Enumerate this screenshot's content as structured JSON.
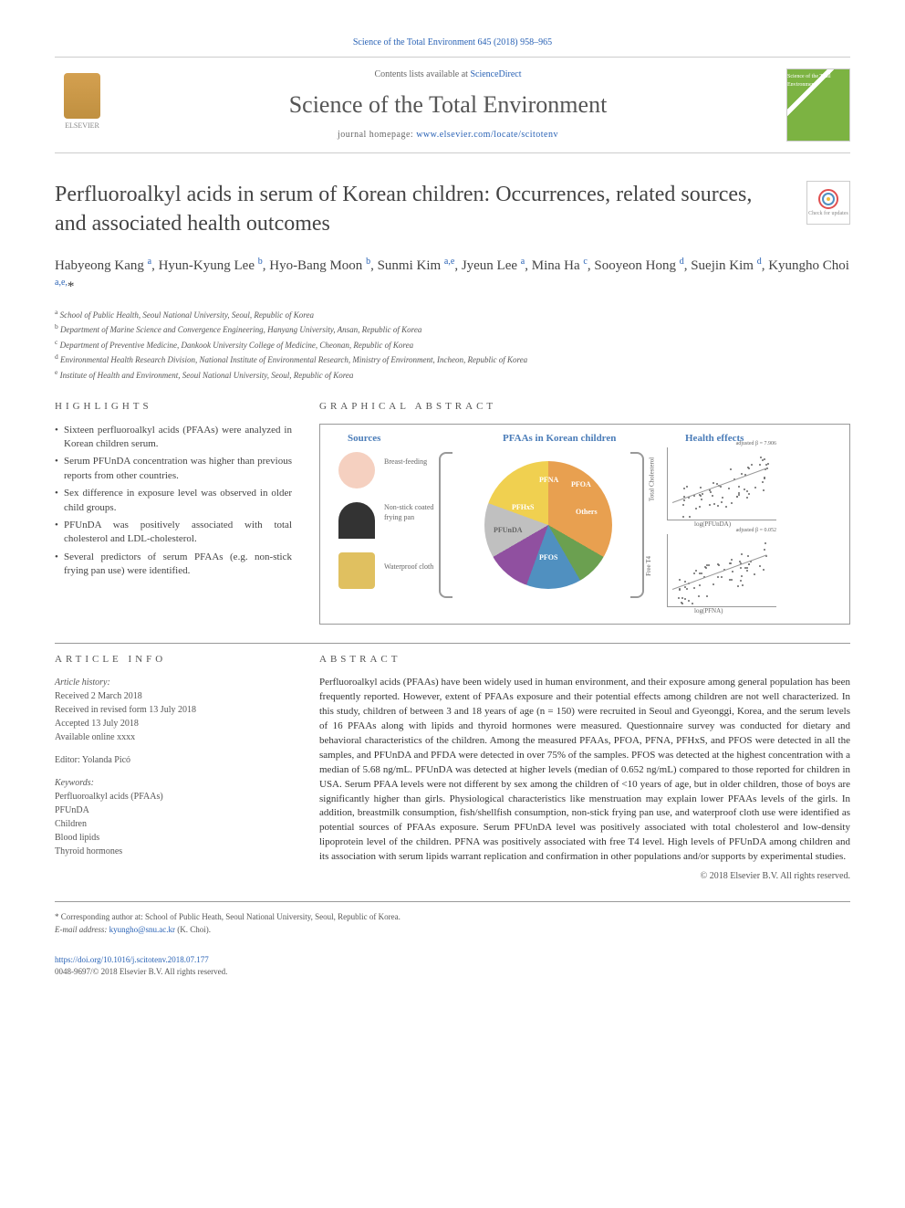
{
  "journal_ref": "Science of the Total Environment 645 (2018) 958–965",
  "contents_line_prefix": "Contents lists available at ",
  "contents_line_link": "ScienceDirect",
  "journal_title": "Science of the Total Environment",
  "journal_homepage_prefix": "journal homepage: ",
  "journal_homepage_link": "www.elsevier.com/locate/scitotenv",
  "publisher": "ELSEVIER",
  "journal_cover_text": "Science of the Total Environment",
  "check_badge_text": "Check for updates",
  "article_title": "Perfluoroalkyl acids in serum of Korean children: Occurrences, related sources, and associated health outcomes",
  "authors_html": "Habyeong Kang <sup>a</sup>, Hyun-Kyung Lee <sup>b</sup>, Hyo-Bang Moon <sup>b</sup>, Sunmi Kim <sup>a,e</sup>, Jyeun Lee <sup>a</sup>, Mina Ha <sup>c</sup>, Sooyeon Hong <sup>d</sup>, Suejin Kim <sup>d</sup>, Kyungho Choi <sup>a,e,</sup><span class='star'>*</span>",
  "affiliations": [
    {
      "sup": "a",
      "text": "School of Public Health, Seoul National University, Seoul, Republic of Korea"
    },
    {
      "sup": "b",
      "text": "Department of Marine Science and Convergence Engineering, Hanyang University, Ansan, Republic of Korea"
    },
    {
      "sup": "c",
      "text": "Department of Preventive Medicine, Dankook University College of Medicine, Cheonan, Republic of Korea"
    },
    {
      "sup": "d",
      "text": "Environmental Health Research Division, National Institute of Environmental Research, Ministry of Environment, Incheon, Republic of Korea"
    },
    {
      "sup": "e",
      "text": "Institute of Health and Environment, Seoul National University, Seoul, Republic of Korea"
    }
  ],
  "highlights_heading": "HIGHLIGHTS",
  "highlights": [
    "Sixteen perfluoroalkyl acids (PFAAs) were analyzed in Korean children serum.",
    "Serum PFUnDA concentration was higher than previous reports from other countries.",
    "Sex difference in exposure level was observed in older child groups.",
    "PFUnDA was positively associated with total cholesterol and LDL-cholesterol.",
    "Several predictors of serum PFAAs (e.g. non-stick frying pan use) were identified."
  ],
  "graphical_abstract_heading": "GRAPHICAL ABSTRACT",
  "graphical_abstract": {
    "section_titles": {
      "sources": "Sources",
      "center": "PFAAs in Korean children",
      "health": "Health effects"
    },
    "source_labels": [
      "Breast-feeding",
      "Non-stick coated frying pan",
      "Waterproof cloth"
    ],
    "pie": {
      "type": "pie",
      "slices": [
        {
          "label": "PFOS",
          "color": "#e8a050",
          "value": 33
        },
        {
          "label": "Others",
          "color": "#6ba050",
          "value": 8
        },
        {
          "label": "PFOA",
          "color": "#5090c0",
          "value": 14
        },
        {
          "label": "PFNA",
          "color": "#9050a0",
          "value": 11
        },
        {
          "label": "PFHxS",
          "color": "#c0c0c0",
          "value": 14
        },
        {
          "label": "PFUnDA",
          "color": "#f0d050",
          "value": 20
        }
      ],
      "background_color": "#ffffff"
    },
    "scatter": [
      {
        "ylabel": "Total Cholesterol",
        "xlabel": "log(PFUnDA)",
        "annotation": "adjusted β = 7.906",
        "trend": "positive",
        "n_points": 120,
        "xlim": [
          -1,
          1
        ],
        "ylim": [
          100,
          260
        ],
        "point_color": "#666666"
      },
      {
        "ylabel": "Free T4",
        "xlabel": "log(PFNA)",
        "annotation": "adjusted β = 0.052",
        "trend": "positive",
        "n_points": 120,
        "xlim": [
          -1,
          1
        ],
        "ylim": [
          0.8,
          1.8
        ],
        "point_color": "#666666"
      }
    ]
  },
  "article_info_heading": "ARTICLE INFO",
  "article_history_label": "Article history:",
  "article_history": [
    "Received 2 March 2018",
    "Received in revised form 13 July 2018",
    "Accepted 13 July 2018",
    "Available online xxxx"
  ],
  "editor_label": "Editor: ",
  "editor_name": "Yolanda Picó",
  "keywords_label": "Keywords:",
  "keywords": [
    "Perfluoroalkyl acids (PFAAs)",
    "PFUnDA",
    "Children",
    "Blood lipids",
    "Thyroid hormones"
  ],
  "abstract_heading": "ABSTRACT",
  "abstract_text": "Perfluoroalkyl acids (PFAAs) have been widely used in human environment, and their exposure among general population has been frequently reported. However, extent of PFAAs exposure and their potential effects among children are not well characterized. In this study, children of between 3 and 18 years of age (n = 150) were recruited in Seoul and Gyeonggi, Korea, and the serum levels of 16 PFAAs along with lipids and thyroid hormones were measured. Questionnaire survey was conducted for dietary and behavioral characteristics of the children. Among the measured PFAAs, PFOA, PFNA, PFHxS, and PFOS were detected in all the samples, and PFUnDA and PFDA were detected in over 75% of the samples. PFOS was detected at the highest concentration with a median of 5.68 ng/mL. PFUnDA was detected at higher levels (median of 0.652 ng/mL) compared to those reported for children in USA. Serum PFAA levels were not different by sex among the children of <10 years of age, but in older children, those of boys are significantly higher than girls. Physiological characteristics like menstruation may explain lower PFAAs levels of the girls. In addition, breastmilk consumption, fish/shellfish consumption, non-stick frying pan use, and waterproof cloth use were identified as potential sources of PFAAs exposure. Serum PFUnDA level was positively associated with total cholesterol and low-density lipoprotein level of the children. PFNA was positively associated with free T4 level. High levels of PFUnDA among children and its association with serum lipids warrant replication and confirmation in other populations and/or supports by experimental studies.",
  "copyright": "© 2018 Elsevier B.V. All rights reserved.",
  "corresponding_label": "* Corresponding author at: ",
  "corresponding_text": "School of Public Heath, Seoul National University, Seoul, Republic of Korea.",
  "email_label": "E-mail address: ",
  "email": "kyungho@snu.ac.kr",
  "email_suffix": " (K. Choi).",
  "doi": "https://doi.org/10.1016/j.scitotenv.2018.07.177",
  "issn_line": "0048-9697/© 2018 Elsevier B.V. All rights reserved.",
  "colors": {
    "link": "#2962b5",
    "text": "#333333",
    "heading": "#555555",
    "border": "#cccccc"
  }
}
